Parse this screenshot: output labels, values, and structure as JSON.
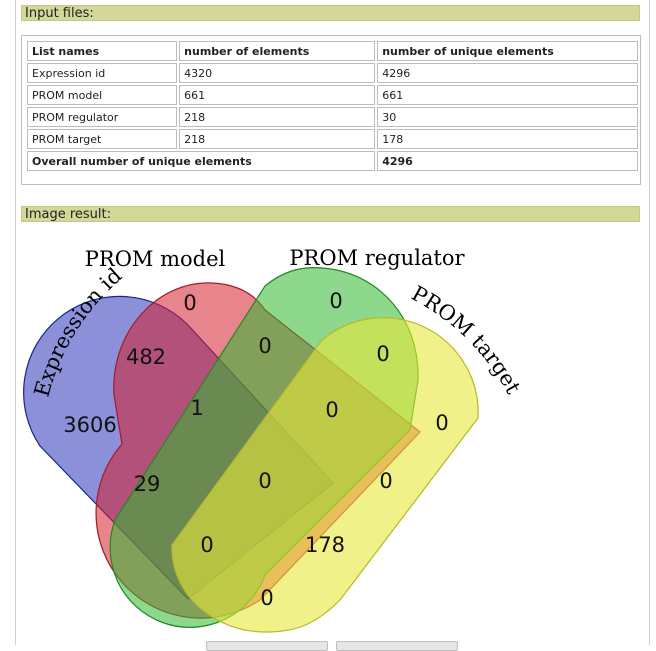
{
  "input_section": {
    "title": "Input files:"
  },
  "table": {
    "headers": [
      "List names",
      "number of elements",
      "number of unique elements"
    ],
    "rows": [
      [
        "Expression id",
        "4320",
        "4296"
      ],
      [
        "PROM model",
        "661",
        "661"
      ],
      [
        "PROM regulator",
        "218",
        "30"
      ],
      [
        "PROM target",
        "218",
        "178"
      ]
    ],
    "overall_label": "Overall number of unique elements",
    "overall_value": "4296"
  },
  "image_section": {
    "title": "Image result:"
  },
  "venn": {
    "sets": [
      {
        "name": "Expression id",
        "color": "#2b34b8"
      },
      {
        "name": "PROM model",
        "color": "#d41f2e"
      },
      {
        "name": "PROM regulator",
        "color": "#2fb82f"
      },
      {
        "name": "PROM target",
        "color": "#e8e83a"
      }
    ],
    "counts": {
      "A": "3606",
      "B": "0",
      "C": "0",
      "D": "0",
      "AB": "482",
      "BC": "0",
      "CD": "0",
      "AC": "29",
      "BD": "0",
      "AD": "0",
      "ABC": "1",
      "BCD": "0",
      "ACD": "0",
      "ABD": "178",
      "ABCD": "0"
    }
  }
}
